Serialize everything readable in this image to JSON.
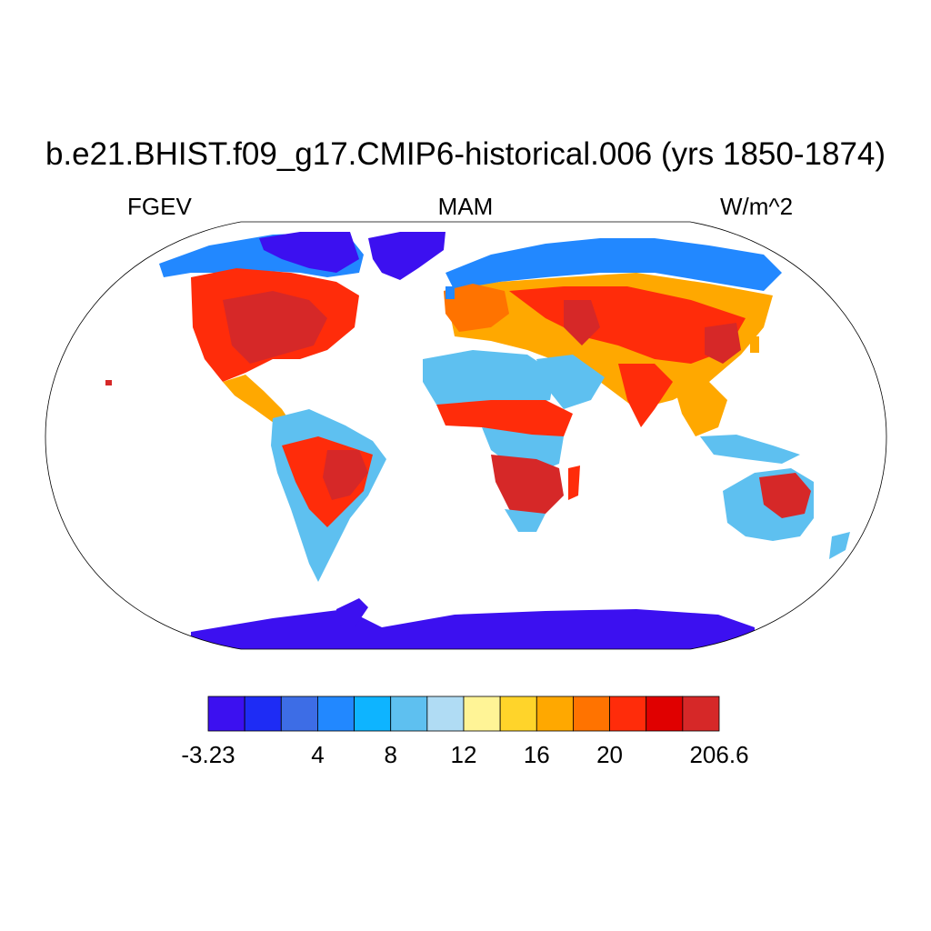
{
  "header": {
    "title": "b.e21.BHIST.f09_g17.CMIP6-historical.006 (yrs 1850-1874)",
    "left_label": "FGEV",
    "center_label": "MAM",
    "right_label": "W/m^2"
  },
  "colorbar": {
    "colors": [
      "#3c10f0",
      "#1e2cf5",
      "#3d6de6",
      "#2288ff",
      "#0eb4ff",
      "#5ec0f0",
      "#b0dcf4",
      "#fff496",
      "#ffd42a",
      "#ffa800",
      "#ff7300",
      "#ff2c0a",
      "#e00000",
      "#d62828"
    ],
    "tick_labels": [
      {
        "text": "-3.23",
        "boundary": 0
      },
      {
        "text": "4",
        "boundary": 3
      },
      {
        "text": "8",
        "boundary": 5
      },
      {
        "text": "12",
        "boundary": 7
      },
      {
        "text": "16",
        "boundary": 9
      },
      {
        "text": "20",
        "boundary": 11
      },
      {
        "text": "206.6",
        "boundary": 14
      }
    ]
  },
  "map": {
    "projection": "Robinson",
    "land_colors": {
      "ice": "#3c10f0",
      "boreal": "#2288ff",
      "desert": "#5ec0f0",
      "moderate": "#ffd42a",
      "high": "#ff2c0a",
      "very_high": "#d62828"
    }
  }
}
